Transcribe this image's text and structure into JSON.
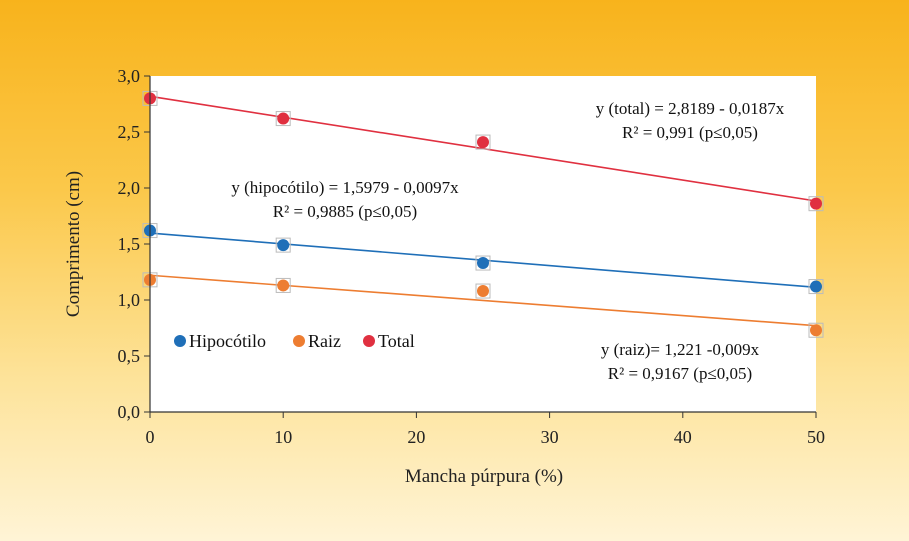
{
  "chart_data": {
    "type": "scatter",
    "xlabel": "Mancha púrpura (%)",
    "ylabel": "Comprimento (cm)",
    "xlim": [
      0,
      50
    ],
    "ylim": [
      0,
      3
    ],
    "xticks": [
      "0",
      "10",
      "20",
      "30",
      "40",
      "50"
    ],
    "yticks": [
      "0,0",
      "0,5",
      "1,0",
      "1,5",
      "2,0",
      "2,5",
      "3,0"
    ],
    "grid": false,
    "legend_position": "left-middle",
    "series": [
      {
        "name": "Hipocótilo",
        "color": "#1f6fb8",
        "x": [
          0,
          10,
          25,
          50
        ],
        "y": [
          1.62,
          1.49,
          1.33,
          1.12
        ],
        "trend": {
          "intercept": 1.5979,
          "slope": -0.0097
        },
        "equation": "y (hipocótilo) = 1,5979 - 0,0097x",
        "r2": "R² = 0,9885 (p≤0,05)"
      },
      {
        "name": "Raiz",
        "color": "#ed7d31",
        "x": [
          0,
          10,
          25,
          50
        ],
        "y": [
          1.18,
          1.13,
          1.08,
          0.73
        ],
        "trend": {
          "intercept": 1.221,
          "slope": -0.009
        },
        "equation": "y (raiz)= 1,221 -0,009x",
        "r2": "R² = 0,9167 (p≤0,05)"
      },
      {
        "name": "Total",
        "color": "#e03040",
        "x": [
          0,
          10,
          25,
          50
        ],
        "y": [
          2.8,
          2.62,
          2.41,
          1.86
        ],
        "trend": {
          "intercept": 2.8189,
          "slope": -0.0187
        },
        "equation": "y (total) = 2,8189 - 0,0187x",
        "r2": "R² = 0,991 (p≤0,05)"
      }
    ]
  }
}
